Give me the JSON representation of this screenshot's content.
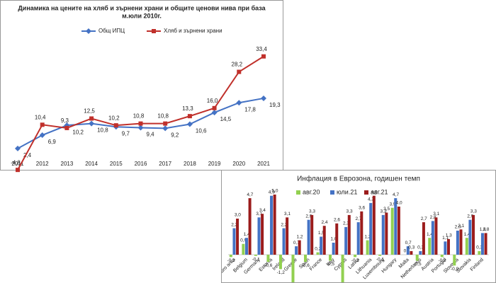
{
  "chart_data": [
    {
      "type": "line",
      "title": "Динамика на цените на хляб и зърнени храни и общите ценови нива при база",
      "subtitle": "м.юли 2010г.",
      "categories": [
        "2011",
        "2012",
        "2013",
        "2014",
        "2015",
        "2016",
        "2017",
        "2018",
        "2019",
        "2020",
        "2021"
      ],
      "series": [
        {
          "name": "Общ ИПЦ",
          "color": "#4472c4",
          "marker": "diamond",
          "values": [
            2.4,
            6.9,
            10.2,
            10.8,
            9.7,
            9.4,
            9.2,
            10.6,
            14.5,
            17.8,
            19.3
          ],
          "value_labels": [
            "2,4",
            "6,9",
            "10,2",
            "10,8",
            "9,7",
            "9,4",
            "9,2",
            "10,6",
            "14,5",
            "17,8",
            "19,3"
          ]
        },
        {
          "name": "Хляб и зърнени храни",
          "color": "#c0302b",
          "marker": "square",
          "values": [
            -4.8,
            10.4,
            9.3,
            12.5,
            10.2,
            10.8,
            10.8,
            13.3,
            16.0,
            28.2,
            33.4
          ],
          "value_labels": [
            "-4,8",
            "10,4",
            "9,3",
            "12,5",
            "10,2",
            "10,8",
            "10,8",
            "13,3",
            "16,0",
            "28,2",
            "33,4"
          ]
        }
      ]
    },
    {
      "type": "bar",
      "title": "Инфлация  в Еврозона, годишен темп",
      "categories": [
        "Euro area",
        "Belgium",
        "Germany",
        "Estonia",
        "Ireland",
        "Greece",
        "Spain",
        "France",
        "Italy",
        "Cyprus",
        "Latvia",
        "Lithuania",
        "Luxembourg",
        "Hungary",
        "Malta",
        "Netherlands",
        "Austria",
        "Portugal",
        "Slovenia",
        "Slovakia",
        "Finland"
      ],
      "series": [
        {
          "name": "авг.20",
          "color": "#92d050",
          "values": [
            -0.2,
            0.9,
            -0.1,
            -0.6,
            -1.2,
            -2.3,
            -0.6,
            0.2,
            -0.5,
            -2.9,
            -0.2,
            1.2,
            -0.1,
            3.9,
            0.0,
            -0.5,
            1.4,
            -0.2,
            -0.9,
            1.4,
            0.3
          ],
          "value_labels": [
            "-0,2",
            "0,9",
            "-0,1",
            "-0,6",
            "-1,2",
            "-2,3",
            "-0,6",
            "0,2",
            "-0,5",
            "-2,9",
            "-0,2",
            "1,2",
            "-0,1",
            "3,9",
            "0",
            "-0,5",
            "1,4",
            "-0,2",
            "-0,9",
            "1,4",
            "0,3"
          ]
        },
        {
          "name": "юли.21",
          "color": "#4472c4",
          "values": [
            2.2,
            1.4,
            3.1,
            4.9,
            2.2,
            0.7,
            2.9,
            1.5,
            1.0,
            2.3,
            2.7,
            4.3,
            3.3,
            4.7,
            0.7,
            0.3,
            2.8,
            1.1,
            2.0,
            2.9,
            1.8
          ],
          "value_labels": [
            "2,2",
            "1,4",
            "3,1",
            "4,9",
            "2,2",
            "0,7",
            "2,9",
            "1,5",
            "1,0",
            "2,3",
            "2,7",
            "4,3",
            "3,3",
            "4,7",
            "0,7",
            "0,3",
            "2,8",
            "1,1",
            "2,0",
            "2,9",
            "1,8"
          ]
        },
        {
          "name": "авг.21",
          "color": "#9b1c1c",
          "values": [
            3.0,
            4.7,
            3.4,
            5.0,
            3.1,
            1.2,
            3.3,
            2.4,
            2.6,
            3.3,
            3.6,
            4.9,
            3.5,
            4.0,
            0.3,
            2.7,
            3.1,
            1.3,
            2.1,
            3.3,
            1.8
          ],
          "value_labels": [
            "3,0",
            "4,7",
            "3,4",
            "5,0",
            "3,1",
            "1,2",
            "3,3",
            "2,4",
            "2,6",
            "3,3",
            "3,6",
            "4,9",
            "3,5",
            "4,0",
            "0,3",
            "2,7",
            "3,1",
            "1,3",
            "2,1",
            "3,3",
            "1,8"
          ]
        }
      ]
    }
  ]
}
